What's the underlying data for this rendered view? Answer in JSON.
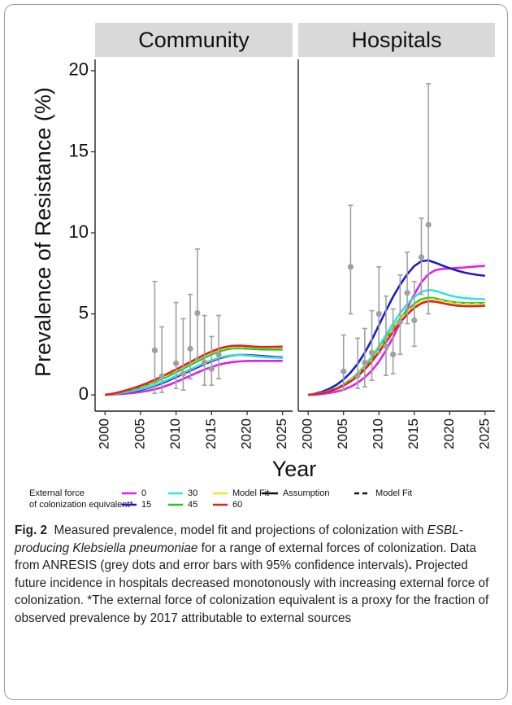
{
  "figure": {
    "y_label": "Prevalence of Resistance (%)",
    "x_label": "Year"
  },
  "legend": {
    "title": [
      "External force",
      "of colonization equivalent*"
    ],
    "linetypes": [
      {
        "name": "Assumption",
        "linetype": "solid"
      },
      {
        "name": "Model Fit",
        "linetype": "dashed"
      }
    ]
  },
  "chart_data": [
    {
      "type": "line",
      "title": "Community",
      "x": [
        2000,
        2001,
        2002,
        2003,
        2004,
        2005,
        2006,
        2007,
        2008,
        2009,
        2010,
        2011,
        2012,
        2013,
        2014,
        2015,
        2016,
        2017,
        2018,
        2019,
        2020,
        2021,
        2022,
        2023,
        2024,
        2025
      ],
      "series": [
        {
          "name": "0",
          "color": "#e020e6",
          "linetype": "solid",
          "values": [
            0,
            0.02,
            0.05,
            0.08,
            0.12,
            0.18,
            0.25,
            0.35,
            0.47,
            0.62,
            0.8,
            0.99,
            1.18,
            1.38,
            1.56,
            1.72,
            1.86,
            1.96,
            2.03,
            2.07,
            2.09,
            2.1,
            2.1,
            2.1,
            2.1,
            2.1
          ]
        },
        {
          "name": "15",
          "color": "#1c1cc8",
          "linetype": "solid",
          "values": [
            0,
            0.04,
            0.09,
            0.15,
            0.22,
            0.31,
            0.42,
            0.56,
            0.72,
            0.9,
            1.1,
            1.3,
            1.5,
            1.7,
            1.9,
            2.08,
            2.24,
            2.36,
            2.44,
            2.47,
            2.46,
            2.43,
            2.4,
            2.37,
            2.34,
            2.32
          ]
        },
        {
          "name": "30",
          "color": "#35e0e0",
          "linetype": "solid",
          "values": [
            0,
            0.04,
            0.1,
            0.17,
            0.25,
            0.35,
            0.47,
            0.62,
            0.79,
            0.97,
            1.17,
            1.37,
            1.57,
            1.77,
            1.97,
            2.14,
            2.29,
            2.39,
            2.45,
            2.46,
            2.43,
            2.39,
            2.35,
            2.32,
            2.3,
            2.28
          ]
        },
        {
          "name": "45",
          "color": "#22c822",
          "linetype": "solid",
          "values": [
            0,
            0.06,
            0.14,
            0.24,
            0.35,
            0.48,
            0.63,
            0.8,
            0.99,
            1.19,
            1.4,
            1.62,
            1.85,
            2.07,
            2.3,
            2.5,
            2.68,
            2.8,
            2.87,
            2.88,
            2.86,
            2.83,
            2.81,
            2.8,
            2.8,
            2.8
          ]
        },
        {
          "name": "Model Fit",
          "color": "#f2e22a",
          "linetype": "dashed",
          "values": [
            0,
            0.07,
            0.16,
            0.27,
            0.39,
            0.53,
            0.69,
            0.87,
            1.07,
            1.28,
            1.5,
            1.73,
            1.96,
            2.19,
            2.41,
            2.61,
            2.78,
            2.9,
            2.96,
            2.97,
            2.95,
            2.93,
            2.92,
            2.92,
            2.92,
            2.93
          ]
        },
        {
          "name": "60",
          "color": "#e02222",
          "linetype": "solid",
          "values": [
            0,
            0.07,
            0.17,
            0.29,
            0.42,
            0.57,
            0.74,
            0.93,
            1.13,
            1.35,
            1.57,
            1.8,
            2.03,
            2.26,
            2.48,
            2.68,
            2.85,
            2.97,
            3.03,
            3.04,
            3.01,
            2.98,
            2.96,
            2.96,
            2.97,
            2.98
          ]
        }
      ],
      "observed": {
        "color": "#a0a0a0",
        "x": [
          2007,
          2008,
          2010,
          2011,
          2012,
          2013,
          2014,
          2015,
          2016
        ],
        "values": [
          2.75,
          1.15,
          1.95,
          1.3,
          2.85,
          5.05,
          2.0,
          1.6,
          2.5
        ],
        "lower": [
          0.1,
          0.15,
          0.4,
          0.3,
          1.0,
          2.2,
          0.6,
          0.6,
          1.0
        ],
        "upper": [
          7.0,
          4.2,
          5.7,
          4.7,
          6.2,
          9.0,
          4.9,
          3.6,
          4.9
        ]
      },
      "xlim": [
        1998.6,
        2026.4
      ],
      "xticks": [
        2000,
        2005,
        2010,
        2015,
        2020,
        2025
      ],
      "ylim": [
        -1,
        20.7
      ],
      "yticks": [
        0,
        5,
        10,
        15,
        20
      ],
      "grid": false
    },
    {
      "type": "line",
      "title": "Hospitals",
      "x": [
        2000,
        2001,
        2002,
        2003,
        2004,
        2005,
        2006,
        2007,
        2008,
        2009,
        2010,
        2011,
        2012,
        2013,
        2014,
        2015,
        2016,
        2017,
        2018,
        2019,
        2020,
        2021,
        2022,
        2023,
        2024,
        2025
      ],
      "series": [
        {
          "name": "0",
          "color": "#e020e6",
          "linetype": "solid",
          "values": [
            0,
            0.02,
            0.06,
            0.12,
            0.2,
            0.32,
            0.5,
            0.75,
            1.08,
            1.5,
            2.05,
            2.75,
            3.55,
            4.45,
            5.35,
            6.2,
            6.95,
            7.45,
            7.7,
            7.78,
            7.8,
            7.83,
            7.86,
            7.9,
            7.93,
            7.96
          ]
        },
        {
          "name": "15",
          "color": "#1c1cc8",
          "linetype": "solid",
          "values": [
            0,
            0.08,
            0.2,
            0.38,
            0.62,
            0.95,
            1.38,
            1.92,
            2.6,
            3.4,
            4.3,
            5.2,
            6.05,
            6.8,
            7.45,
            7.95,
            8.25,
            8.3,
            8.15,
            7.98,
            7.82,
            7.68,
            7.56,
            7.47,
            7.4,
            7.35
          ]
        },
        {
          "name": "30",
          "color": "#35e0e0",
          "linetype": "solid",
          "values": [
            0,
            0.05,
            0.13,
            0.25,
            0.42,
            0.65,
            0.95,
            1.33,
            1.8,
            2.36,
            3.0,
            3.7,
            4.4,
            5.05,
            5.6,
            6.05,
            6.35,
            6.48,
            6.42,
            6.28,
            6.14,
            6.04,
            5.98,
            5.94,
            5.92,
            5.9
          ]
        },
        {
          "name": "45",
          "color": "#22c822",
          "linetype": "solid",
          "values": [
            0,
            0.05,
            0.12,
            0.24,
            0.4,
            0.62,
            0.9,
            1.26,
            1.7,
            2.22,
            2.82,
            3.47,
            4.12,
            4.72,
            5.22,
            5.62,
            5.9,
            6.0,
            5.95,
            5.85,
            5.76,
            5.7,
            5.67,
            5.66,
            5.66,
            5.67
          ]
        },
        {
          "name": "Model Fit",
          "color": "#f2e22a",
          "linetype": "dashed",
          "values": [
            0,
            0.05,
            0.12,
            0.24,
            0.4,
            0.61,
            0.88,
            1.23,
            1.66,
            2.17,
            2.76,
            3.4,
            4.04,
            4.63,
            5.13,
            5.52,
            5.8,
            5.92,
            5.88,
            5.79,
            5.7,
            5.64,
            5.61,
            5.6,
            5.6,
            5.62
          ]
        },
        {
          "name": "60",
          "color": "#e02222",
          "linetype": "solid",
          "values": [
            0,
            0.04,
            0.11,
            0.22,
            0.37,
            0.57,
            0.83,
            1.16,
            1.57,
            2.06,
            2.63,
            3.26,
            3.89,
            4.47,
            4.97,
            5.37,
            5.65,
            5.78,
            5.75,
            5.66,
            5.57,
            5.51,
            5.48,
            5.47,
            5.48,
            5.5
          ]
        }
      ],
      "observed": {
        "color": "#a0a0a0",
        "x": [
          2005,
          2006,
          2007,
          2008,
          2009,
          2010,
          2011,
          2012,
          2013,
          2014,
          2015,
          2016,
          2017
        ],
        "values": [
          1.45,
          7.9,
          1.2,
          2.0,
          2.6,
          5.0,
          3.0,
          2.5,
          4.5,
          6.3,
          4.6,
          8.5,
          10.5
        ],
        "lower": [
          0.3,
          5.0,
          0.4,
          0.5,
          0.9,
          2.6,
          1.2,
          1.3,
          2.5,
          4.4,
          3.0,
          6.2,
          5.0
        ],
        "upper": [
          3.7,
          11.7,
          3.5,
          4.1,
          5.2,
          7.9,
          6.1,
          5.3,
          7.4,
          8.8,
          7.0,
          10.9,
          19.2
        ]
      },
      "xlim": [
        1998.6,
        2026.4
      ],
      "xticks": [
        2000,
        2005,
        2010,
        2015,
        2020,
        2025
      ],
      "ylim": [
        -1,
        20.7
      ],
      "grid": false
    }
  ],
  "caption": {
    "label": "Fig. 2",
    "text_1": "Measured prevalence, model fit and projections of colonization with ",
    "italic": "ESBL-producing Klebsiella pneumoniae",
    "text_2": " for a range of external forces of colonization. Data from ANRESIS (grey dots and error bars with 95% confidence intervals)",
    "bold_period": ".",
    "text_3": " Projected future incidence in hospitals decreased monotonously with increasing external force of colonization. *The external force of colonization equivalent is a proxy for the fraction of observed prevalence by 2017 attributable to external sources"
  }
}
